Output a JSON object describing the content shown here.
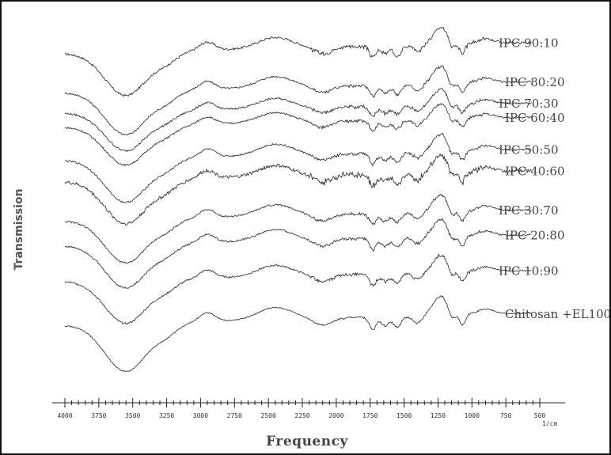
{
  "chart_data": {
    "type": "line",
    "title": "",
    "xlabel": "Frequency",
    "ylabel": "Transmission",
    "x_unit": "1/cm",
    "xlim": [
      4000,
      500
    ],
    "x_ticks": [
      4000,
      3750,
      3500,
      3250,
      3000,
      2750,
      2500,
      2250,
      2000,
      1750,
      1500,
      1250,
      1000,
      750,
      500
    ],
    "y_ticks": [],
    "series": [
      {
        "name": "IPC 90:10",
        "baseline": 0.93,
        "amp": 1.0,
        "noise": 1.3
      },
      {
        "name": "IPC 80:20",
        "baseline": 0.82,
        "amp": 1.0,
        "noise": 1.0
      },
      {
        "name": "IPC 70:30",
        "baseline": 0.76,
        "amp": 0.9,
        "noise": 1.1
      },
      {
        "name": "IPC 60:40",
        "baseline": 0.72,
        "amp": 0.9,
        "noise": 1.0
      },
      {
        "name": "IPC 50:50",
        "baseline": 0.63,
        "amp": 1.0,
        "noise": 1.0
      },
      {
        "name": "IPC 40:60",
        "baseline": 0.57,
        "amp": 1.0,
        "noise": 2.0
      },
      {
        "name": "IPC 30:70",
        "baseline": 0.46,
        "amp": 1.0,
        "noise": 1.0
      },
      {
        "name": "IPC 20:80",
        "baseline": 0.39,
        "amp": 1.0,
        "noise": 1.0
      },
      {
        "name": "IPC 10:90",
        "baseline": 0.29,
        "amp": 1.0,
        "noise": 1.0
      },
      {
        "name": "Chitosan +EL100",
        "baseline": 0.17,
        "amp": 1.1,
        "noise": 0.6
      }
    ],
    "grid": false,
    "legend": "inline-right"
  }
}
